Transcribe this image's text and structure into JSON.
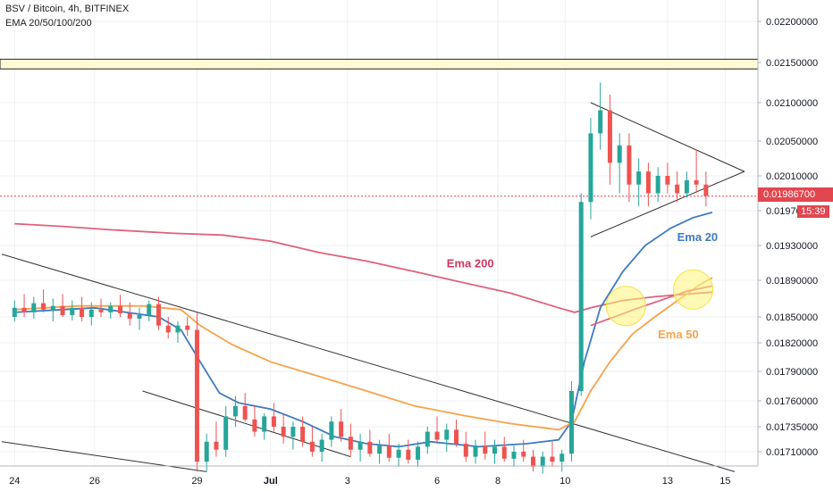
{
  "header": {
    "symbol_line": "BSV / Bitcoin, 4h, BITFINEX",
    "indicator_line": "EMA 20/50/100/200"
  },
  "price_tag": {
    "value": "0.01986700",
    "countdown": "15:39"
  },
  "colors": {
    "up": "#26a69a",
    "down": "#ef5350",
    "ema20": "#3d7ac0",
    "ema50": "#f7a24a",
    "ema200": "#e0607e",
    "trendline": "#333333",
    "band": "#fffbd5",
    "price_line": "#e2464f"
  },
  "chart_data": {
    "type": "candlestick",
    "x_ticks": [
      "24",
      "26",
      "29",
      "Jul",
      "3",
      "6",
      "8",
      "10",
      "13",
      "15"
    ],
    "y_ticks": [
      "0.02200000",
      "0.02150000",
      "0.02100000",
      "0.02050000",
      "0.02010000",
      "0.01970000",
      "0.01930000",
      "0.01890000",
      "0.01850000",
      "0.01820000",
      "0.01790000",
      "0.01760000",
      "0.01735000",
      "0.01710000"
    ],
    "annotations": [
      {
        "text": "Ema 200",
        "color": "#d0375e"
      },
      {
        "text": "Ema 20",
        "color": "#3d7ac0"
      },
      {
        "text": "Ema 50",
        "color": "#f7a24a"
      }
    ],
    "resistance_band": [
      0.02142,
      0.02154
    ],
    "last_price": 0.019867,
    "series": [
      {
        "name": "Ema 200",
        "values": [
          [
            0,
            0.01955
          ],
          [
            15,
            0.01952
          ],
          [
            30,
            0.01948
          ],
          [
            50,
            0.01944
          ],
          [
            65,
            0.01942
          ],
          [
            80,
            0.01935
          ],
          [
            95,
            0.01922
          ],
          [
            110,
            0.01912
          ],
          [
            125,
            0.019
          ],
          [
            137,
            0.0189
          ],
          [
            155,
            0.01876
          ],
          [
            170,
            0.0186
          ],
          [
            175,
            0.01855
          ],
          [
            180,
            0.0186
          ],
          [
            190,
            0.01868
          ],
          [
            200,
            0.01872
          ],
          [
            210,
            0.01875
          ],
          [
            218,
            0.01877
          ]
        ]
      },
      {
        "name": "Ema 20",
        "values": [
          [
            0,
            0.01855
          ],
          [
            15,
            0.01858
          ],
          [
            25,
            0.0186
          ],
          [
            35,
            0.01855
          ],
          [
            45,
            0.0185
          ],
          [
            52,
            0.01835
          ],
          [
            58,
            0.018
          ],
          [
            64,
            0.01768
          ],
          [
            70,
            0.01758
          ],
          [
            80,
            0.01752
          ],
          [
            90,
            0.0174
          ],
          [
            100,
            0.01725
          ],
          [
            110,
            0.01718
          ],
          [
            120,
            0.01715
          ],
          [
            130,
            0.0172
          ],
          [
            145,
            0.01715
          ],
          [
            160,
            0.01718
          ],
          [
            170,
            0.01722
          ],
          [
            174,
            0.0174
          ],
          [
            178,
            0.018
          ],
          [
            183,
            0.0186
          ],
          [
            190,
            0.019
          ],
          [
            197,
            0.0193
          ],
          [
            205,
            0.0195
          ],
          [
            212,
            0.01962
          ],
          [
            218,
            0.01968
          ]
        ]
      },
      {
        "name": "Ema 50",
        "values": [
          [
            0,
            0.01858
          ],
          [
            20,
            0.01862
          ],
          [
            40,
            0.01862
          ],
          [
            52,
            0.01858
          ],
          [
            58,
            0.0184
          ],
          [
            68,
            0.01818
          ],
          [
            80,
            0.018
          ],
          [
            95,
            0.01785
          ],
          [
            110,
            0.0177
          ],
          [
            125,
            0.01755
          ],
          [
            140,
            0.01746
          ],
          [
            155,
            0.01738
          ],
          [
            170,
            0.01732
          ],
          [
            175,
            0.0174
          ],
          [
            180,
            0.0177
          ],
          [
            186,
            0.018
          ],
          [
            193,
            0.0183
          ],
          [
            200,
            0.0185
          ],
          [
            208,
            0.0187
          ],
          [
            214,
            0.01885
          ],
          [
            218,
            0.01893
          ]
        ]
      },
      {
        "name": "Ema 100",
        "values": [
          [
            180,
            0.0184
          ],
          [
            195,
            0.0186
          ],
          [
            210,
            0.01878
          ],
          [
            218,
            0.01884
          ]
        ]
      }
    ],
    "candles": [
      [
        0,
        0.0185,
        0.01868,
        0.01845,
        0.0186
      ],
      [
        3,
        0.0186,
        0.01875,
        0.0185,
        0.01855
      ],
      [
        6,
        0.01855,
        0.01872,
        0.01848,
        0.01865
      ],
      [
        9,
        0.01865,
        0.0188,
        0.01855,
        0.01858
      ],
      [
        12,
        0.01858,
        0.0187,
        0.01845,
        0.01862
      ],
      [
        15,
        0.01862,
        0.01875,
        0.0185,
        0.01852
      ],
      [
        18,
        0.01852,
        0.01868,
        0.01846,
        0.0186
      ],
      [
        21,
        0.0186,
        0.01872,
        0.01845,
        0.0185
      ],
      [
        24,
        0.0185,
        0.01866,
        0.0184,
        0.01858
      ],
      [
        27,
        0.01858,
        0.0187,
        0.0185,
        0.01855
      ],
      [
        30,
        0.01855,
        0.01866,
        0.01848,
        0.01862
      ],
      [
        33,
        0.01862,
        0.01874,
        0.0185,
        0.01854
      ],
      [
        36,
        0.01854,
        0.01866,
        0.0184,
        0.01848
      ],
      [
        39,
        0.01848,
        0.0186,
        0.01835,
        0.01852
      ],
      [
        42,
        0.01852,
        0.01868,
        0.01845,
        0.01864
      ],
      [
        45,
        0.01864,
        0.01872,
        0.01835,
        0.0184
      ],
      [
        48,
        0.0184,
        0.0185,
        0.01825,
        0.01832
      ],
      [
        51,
        0.01832,
        0.01845,
        0.0182,
        0.0184
      ],
      [
        54,
        0.0184,
        0.0185,
        0.01828,
        0.01835
      ],
      [
        57,
        0.01835,
        0.01855,
        0.0169,
        0.017
      ],
      [
        60,
        0.017,
        0.01728,
        0.0169,
        0.0172
      ],
      [
        63,
        0.0172,
        0.0174,
        0.01705,
        0.01712
      ],
      [
        66,
        0.01712,
        0.01755,
        0.01705,
        0.01745
      ],
      [
        69,
        0.01745,
        0.01765,
        0.01735,
        0.01755
      ],
      [
        72,
        0.01755,
        0.01768,
        0.0174,
        0.01742
      ],
      [
        75,
        0.01742,
        0.01755,
        0.01725,
        0.0173
      ],
      [
        78,
        0.0173,
        0.01748,
        0.01722,
        0.01745
      ],
      [
        81,
        0.01745,
        0.01758,
        0.0173,
        0.01735
      ],
      [
        84,
        0.01735,
        0.01748,
        0.01718,
        0.01725
      ],
      [
        87,
        0.01725,
        0.0174,
        0.01712,
        0.01735
      ],
      [
        90,
        0.01735,
        0.01745,
        0.01715,
        0.0172
      ],
      [
        93,
        0.0172,
        0.01735,
        0.01705,
        0.0171
      ],
      [
        96,
        0.0171,
        0.01728,
        0.017,
        0.01722
      ],
      [
        99,
        0.01722,
        0.01745,
        0.01715,
        0.0174
      ],
      [
        102,
        0.0174,
        0.01752,
        0.0172,
        0.01725
      ],
      [
        105,
        0.01725,
        0.01738,
        0.01705,
        0.01712
      ],
      [
        108,
        0.01712,
        0.01728,
        0.017,
        0.0172
      ],
      [
        111,
        0.0172,
        0.01732,
        0.01705,
        0.01708
      ],
      [
        114,
        0.01708,
        0.01722,
        0.01698,
        0.01716
      ],
      [
        117,
        0.01716,
        0.01728,
        0.017,
        0.01704
      ],
      [
        120,
        0.01704,
        0.01718,
        0.01695,
        0.01712
      ],
      [
        123,
        0.01712,
        0.01722,
        0.01698,
        0.01702
      ],
      [
        126,
        0.01702,
        0.0172,
        0.01695,
        0.01715
      ],
      [
        129,
        0.01715,
        0.01735,
        0.01708,
        0.0173
      ],
      [
        132,
        0.0173,
        0.01745,
        0.01718,
        0.01722
      ],
      [
        135,
        0.01722,
        0.01738,
        0.0171,
        0.01732
      ],
      [
        138,
        0.01732,
        0.01742,
        0.01715,
        0.01718
      ],
      [
        141,
        0.01718,
        0.0173,
        0.017,
        0.01705
      ],
      [
        144,
        0.01705,
        0.01722,
        0.01698,
        0.01716
      ],
      [
        147,
        0.01716,
        0.0173,
        0.01702,
        0.01708
      ],
      [
        150,
        0.01708,
        0.01722,
        0.01698,
        0.01715
      ],
      [
        153,
        0.01715,
        0.01725,
        0.017,
        0.01703
      ],
      [
        156,
        0.01703,
        0.01716,
        0.01695,
        0.0171
      ],
      [
        159,
        0.0171,
        0.01722,
        0.017,
        0.01705
      ],
      [
        162,
        0.01705,
        0.01712,
        0.0169,
        0.01695
      ],
      [
        165,
        0.01695,
        0.0171,
        0.01688,
        0.01705
      ],
      [
        168,
        0.01705,
        0.0172,
        0.01695,
        0.017
      ],
      [
        171,
        0.017,
        0.01712,
        0.0169,
        0.01708
      ],
      [
        174,
        0.01708,
        0.0178,
        0.017,
        0.0177
      ],
      [
        177,
        0.0177,
        0.0199,
        0.01765,
        0.0198
      ],
      [
        180,
        0.0198,
        0.0208,
        0.0196,
        0.0206
      ],
      [
        183,
        0.0206,
        0.02125,
        0.0204,
        0.0209
      ],
      [
        186,
        0.0209,
        0.0211,
        0.02,
        0.02025
      ],
      [
        189,
        0.02025,
        0.0206,
        0.0199,
        0.02045
      ],
      [
        192,
        0.02045,
        0.0206,
        0.0198,
        0.02
      ],
      [
        195,
        0.02,
        0.0203,
        0.01975,
        0.02015
      ],
      [
        198,
        0.02015,
        0.02025,
        0.01975,
        0.0199
      ],
      [
        201,
        0.0199,
        0.0202,
        0.0198,
        0.0201
      ],
      [
        204,
        0.0201,
        0.02025,
        0.0199,
        0.02
      ],
      [
        207,
        0.02,
        0.02015,
        0.0198,
        0.0199
      ],
      [
        210,
        0.0199,
        0.02015,
        0.01985,
        0.02005
      ],
      [
        213,
        0.02005,
        0.0204,
        0.0199,
        0.02
      ],
      [
        216,
        0.02,
        0.02015,
        0.01975,
        0.01987
      ]
    ]
  }
}
